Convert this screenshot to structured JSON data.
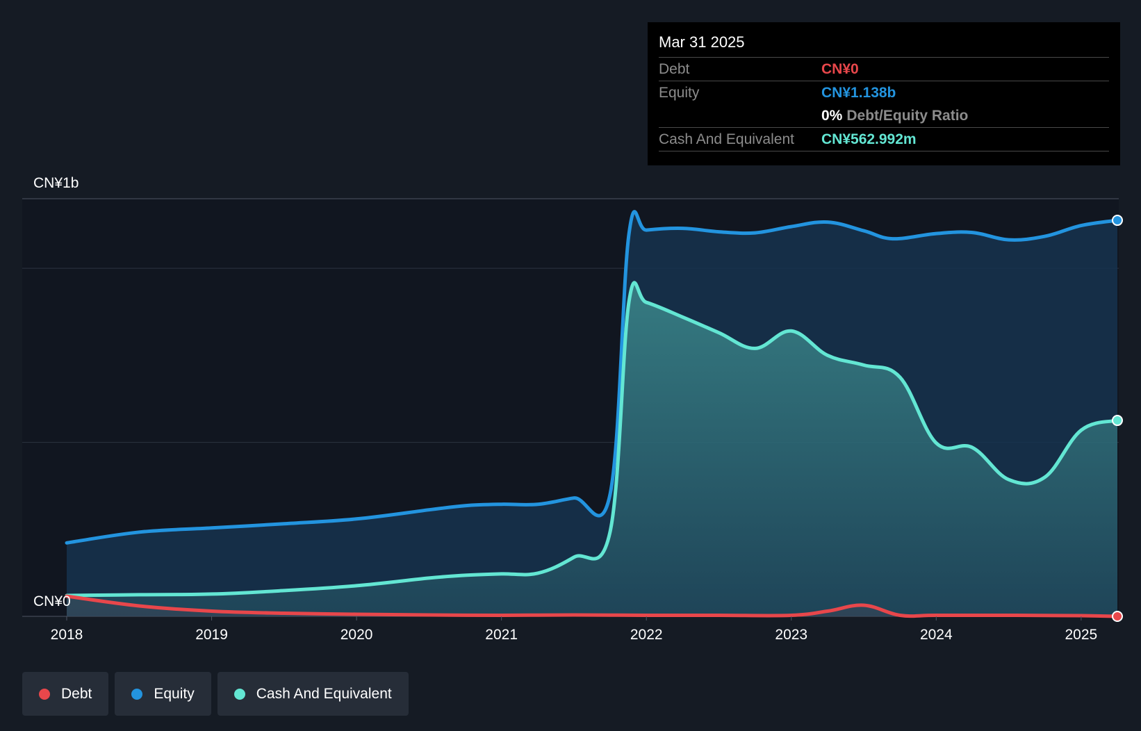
{
  "chart_data": {
    "type": "area",
    "y_unit_labels": [
      "CN¥1b",
      "CN¥0"
    ],
    "ylim": [
      0,
      1200
    ],
    "xlim": [
      2018.0,
      2025.25
    ],
    "x_ticks": [
      "2018",
      "2019",
      "2020",
      "2021",
      "2022",
      "2023",
      "2024",
      "2025"
    ],
    "grid": true,
    "legend_position": "bottom-left",
    "series": [
      {
        "name": "Equity",
        "color": "#2394df",
        "points": [
          [
            2018.0,
            211
          ],
          [
            2018.5,
            242
          ],
          [
            2019.0,
            254
          ],
          [
            2019.5,
            266
          ],
          [
            2020.0,
            280
          ],
          [
            2020.5,
            306
          ],
          [
            2020.75,
            318
          ],
          [
            2021.0,
            322
          ],
          [
            2021.25,
            322
          ],
          [
            2021.5,
            340
          ],
          [
            2021.75,
            352
          ],
          [
            2021.88,
            1100
          ],
          [
            2022.0,
            1110
          ],
          [
            2022.25,
            1115
          ],
          [
            2022.5,
            1105
          ],
          [
            2022.75,
            1102
          ],
          [
            2023.0,
            1120
          ],
          [
            2023.25,
            1133
          ],
          [
            2023.5,
            1108
          ],
          [
            2023.7,
            1085
          ],
          [
            2024.0,
            1100
          ],
          [
            2024.25,
            1103
          ],
          [
            2024.5,
            1082
          ],
          [
            2024.75,
            1092
          ],
          [
            2025.0,
            1123
          ],
          [
            2025.25,
            1138
          ]
        ]
      },
      {
        "name": "Cash And Equivalent",
        "color": "#63e6d3",
        "points": [
          [
            2018.0,
            60
          ],
          [
            2018.5,
            62
          ],
          [
            2019.0,
            64
          ],
          [
            2019.5,
            74
          ],
          [
            2020.0,
            88
          ],
          [
            2020.5,
            110
          ],
          [
            2020.75,
            118
          ],
          [
            2021.0,
            122
          ],
          [
            2021.25,
            124
          ],
          [
            2021.5,
            170
          ],
          [
            2021.75,
            244
          ],
          [
            2021.88,
            905
          ],
          [
            2022.0,
            902
          ],
          [
            2022.25,
            860
          ],
          [
            2022.5,
            815
          ],
          [
            2022.75,
            770
          ],
          [
            2023.0,
            820
          ],
          [
            2023.25,
            750
          ],
          [
            2023.5,
            722
          ],
          [
            2023.75,
            687
          ],
          [
            2024.0,
            498
          ],
          [
            2024.25,
            485
          ],
          [
            2024.5,
            393
          ],
          [
            2024.75,
            400
          ],
          [
            2025.0,
            535
          ],
          [
            2025.25,
            563
          ]
        ]
      },
      {
        "name": "Debt",
        "color": "#e8474b",
        "points": [
          [
            2018.0,
            58
          ],
          [
            2018.5,
            30
          ],
          [
            2019.0,
            15
          ],
          [
            2019.5,
            9
          ],
          [
            2020.0,
            6
          ],
          [
            2020.5,
            4
          ],
          [
            2021.0,
            3
          ],
          [
            2021.5,
            4
          ],
          [
            2022.0,
            3
          ],
          [
            2022.5,
            3
          ],
          [
            2023.0,
            3
          ],
          [
            2023.25,
            15
          ],
          [
            2023.5,
            32
          ],
          [
            2023.75,
            3
          ],
          [
            2024.0,
            3
          ],
          [
            2024.5,
            3
          ],
          [
            2025.0,
            2
          ],
          [
            2025.25,
            0
          ]
        ]
      }
    ]
  },
  "tooltip": {
    "date": "Mar 31 2025",
    "debt_label": "Debt",
    "debt_value": "CN¥0",
    "equity_label": "Equity",
    "equity_value": "CN¥1.138b",
    "ratio_value": "0%",
    "ratio_label": "Debt/Equity Ratio",
    "cash_label": "Cash And Equivalent",
    "cash_value": "CN¥562.992m"
  },
  "legend": [
    {
      "label": "Debt",
      "color": "#e8474b"
    },
    {
      "label": "Equity",
      "color": "#2394df"
    },
    {
      "label": "Cash And Equivalent",
      "color": "#63e6d3"
    }
  ]
}
